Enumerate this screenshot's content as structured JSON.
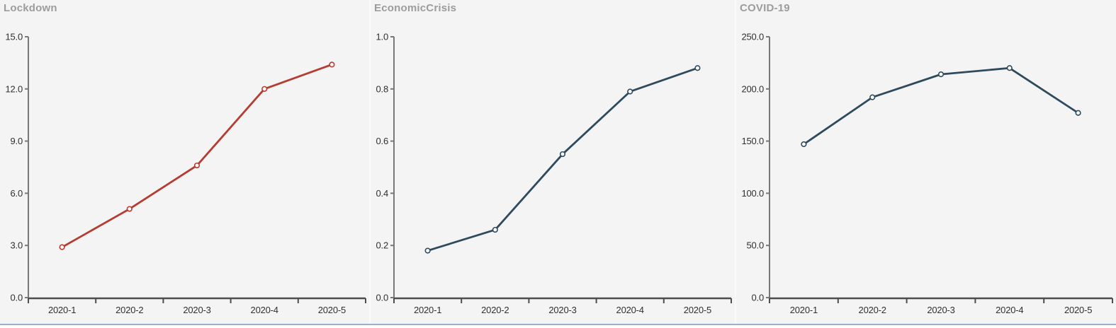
{
  "styles": {
    "panel_background": "#f4f4f4",
    "title_color": "#9c9c9c",
    "tick_label_color": "#2f2f2f",
    "y_axis_color": "#787878",
    "x_axis_color": "#4d4d4d",
    "marker_fill": "#fcfcfc",
    "bottom_divider_color": "#9db0c9"
  },
  "chart_data": [
    {
      "type": "line",
      "title": "Lockdown",
      "categories": [
        "2020-1",
        "2020-2",
        "2020-3",
        "2020-4",
        "2020-5"
      ],
      "values": [
        2.9,
        5.1,
        7.6,
        12.0,
        13.4
      ],
      "xlabel": "",
      "ylabel": "",
      "ylim": [
        0,
        15
      ],
      "yticks": [
        0,
        3,
        6,
        9,
        12,
        15
      ],
      "ytick_labels": [
        "0.0",
        "3.0",
        "6.0",
        "9.0",
        "12.0",
        "15.0"
      ],
      "line_color": "#b53c31",
      "marker": "open-circle",
      "grid": false,
      "legend": "none"
    },
    {
      "type": "line",
      "title": "EconomicCrisis",
      "categories": [
        "2020-1",
        "2020-2",
        "2020-3",
        "2020-4",
        "2020-5"
      ],
      "values": [
        0.18,
        0.26,
        0.55,
        0.79,
        0.88
      ],
      "xlabel": "",
      "ylabel": "",
      "ylim": [
        0,
        1
      ],
      "yticks": [
        0,
        0.2,
        0.4,
        0.6,
        0.8,
        1.0
      ],
      "ytick_labels": [
        "0.0",
        "0.2",
        "0.4",
        "0.6",
        "0.8",
        "1.0"
      ],
      "line_color": "#2e4a5e",
      "marker": "open-circle",
      "grid": false,
      "legend": "none"
    },
    {
      "type": "line",
      "title": "COVID-19",
      "categories": [
        "2020-1",
        "2020-2",
        "2020-3",
        "2020-4",
        "2020-5"
      ],
      "values": [
        147,
        192,
        214,
        220,
        177
      ],
      "xlabel": "",
      "ylabel": "",
      "ylim": [
        0,
        250
      ],
      "yticks": [
        0,
        50,
        100,
        150,
        200,
        250
      ],
      "ytick_labels": [
        "0.0",
        "50.0",
        "100.0",
        "150.0",
        "200.0",
        "250.0"
      ],
      "line_color": "#2e4a5e",
      "marker": "open-circle",
      "grid": false,
      "legend": "none"
    }
  ]
}
